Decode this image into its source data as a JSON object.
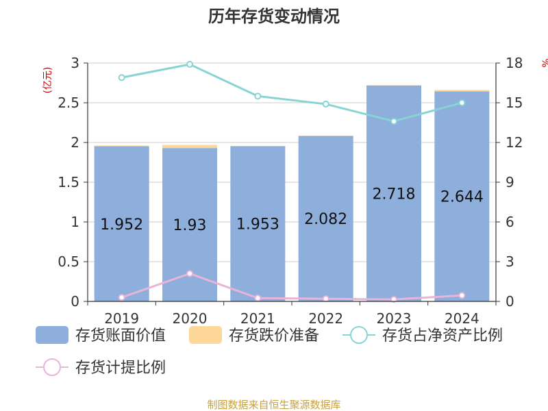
{
  "chart_data": {
    "type": "bar",
    "title": "历年存货变动情况",
    "categories": [
      "2019",
      "2020",
      "2021",
      "2022",
      "2023",
      "2024"
    ],
    "y_left": {
      "unit": "(亿元)",
      "range": [
        0,
        3
      ],
      "ticks": [
        "0",
        "0.5",
        "1",
        "1.5",
        "2",
        "2.5",
        "3"
      ]
    },
    "y_right": {
      "unit": "%",
      "range": [
        0,
        18
      ],
      "ticks": [
        "0",
        "3",
        "6",
        "9",
        "12",
        "15",
        "18"
      ]
    },
    "series": [
      {
        "name": "存货账面价值",
        "type": "bar",
        "stack": "inv",
        "axis": "left",
        "color": "#8eaedb",
        "values": [
          1.952,
          1.93,
          1.953,
          2.082,
          2.718,
          2.644
        ],
        "labels": [
          "1.952",
          "1.93",
          "1.953",
          "2.082",
          "2.718",
          "2.644"
        ]
      },
      {
        "name": "存货跌价准备",
        "type": "bar",
        "stack": "inv",
        "axis": "left",
        "color": "#fdd69a",
        "values": [
          0.01,
          0.04,
          0.005,
          0.004,
          0.003,
          0.017
        ]
      },
      {
        "name": "存货占净资产比例",
        "type": "line",
        "axis": "right",
        "color": "#88d4d4",
        "values": [
          16.9,
          17.9,
          15.5,
          14.9,
          13.6,
          15.0
        ]
      },
      {
        "name": "存货计提比例",
        "type": "line",
        "axis": "right",
        "color": "#e8b4d8",
        "values": [
          0.3,
          2.1,
          0.25,
          0.2,
          0.15,
          0.45
        ]
      }
    ],
    "grid": true,
    "legend_position": "bottom"
  },
  "source": "制图数据来自恒生聚源数据库"
}
